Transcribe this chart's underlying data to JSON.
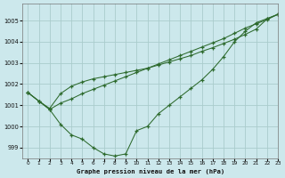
{
  "title": "Graphe pression niveau de la mer (hPa)",
  "bg_color": "#cce8ec",
  "grid_color": "#aacccc",
  "line_color": "#2d6a2d",
  "xlim": [
    -0.5,
    23
  ],
  "ylim": [
    998.5,
    1005.8
  ],
  "yticks": [
    999,
    1000,
    1001,
    1002,
    1003,
    1004,
    1005
  ],
  "xticks": [
    0,
    1,
    2,
    3,
    4,
    5,
    6,
    7,
    8,
    9,
    10,
    11,
    12,
    13,
    14,
    15,
    16,
    17,
    18,
    19,
    20,
    21,
    22,
    23
  ],
  "series1": [
    1001.6,
    1001.2,
    1000.8,
    1000.1,
    999.6,
    999.4,
    999.0,
    998.7,
    998.6,
    998.7,
    999.8,
    1000.0,
    1000.6,
    1001.0,
    1001.4,
    1001.8,
    1002.2,
    1002.7,
    1003.3,
    1004.0,
    1004.5,
    1004.9,
    1005.1,
    1005.3
  ],
  "series2": [
    1001.6,
    1001.2,
    1000.8,
    1001.1,
    1001.3,
    1001.55,
    1001.75,
    1001.95,
    1002.15,
    1002.35,
    1002.55,
    1002.75,
    1002.95,
    1003.15,
    1003.35,
    1003.55,
    1003.75,
    1003.95,
    1004.15,
    1004.4,
    1004.65,
    1004.85,
    1005.05,
    1005.3
  ],
  "series3": [
    1001.6,
    1001.2,
    1000.85,
    1001.55,
    1001.9,
    1002.1,
    1002.25,
    1002.35,
    1002.45,
    1002.55,
    1002.65,
    1002.75,
    1002.9,
    1003.05,
    1003.2,
    1003.35,
    1003.55,
    1003.72,
    1003.92,
    1004.12,
    1004.35,
    1004.6,
    1005.08,
    1005.3
  ]
}
